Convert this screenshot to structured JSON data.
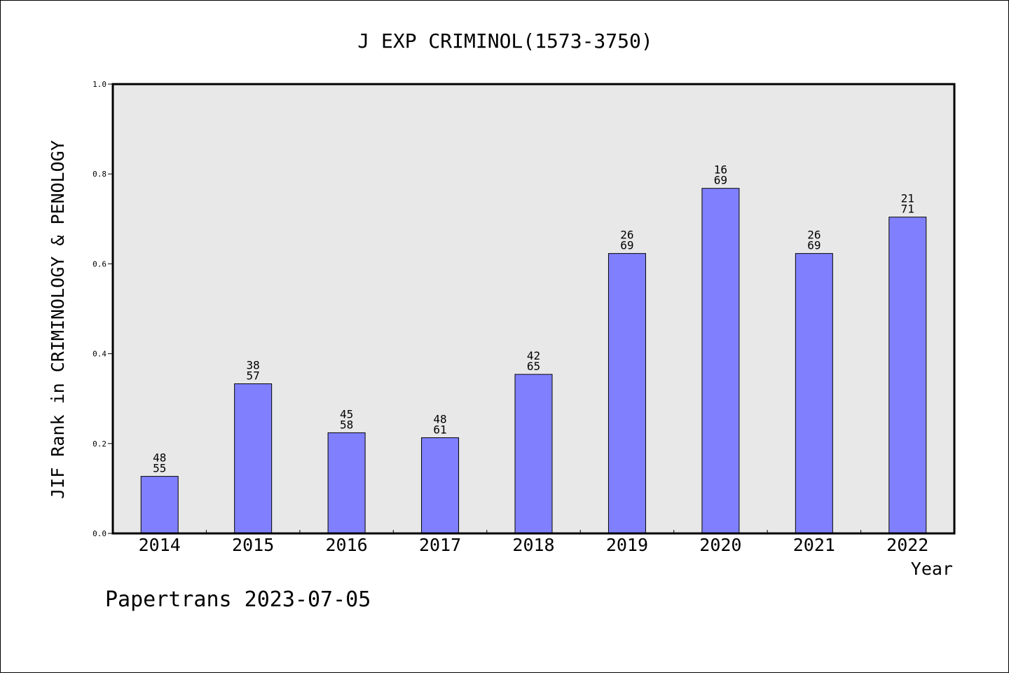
{
  "chart_data": {
    "type": "bar",
    "title": "J EXP CRIMINOL(1573-3750)",
    "xlabel": "Year",
    "ylabel": "JIF Rank in CRIMINOLOGY & PENOLOGY",
    "ylim": [
      0,
      1.0
    ],
    "yticks": [
      "0.0",
      "0.2",
      "0.4",
      "0.6",
      "0.8",
      "1.0"
    ],
    "grid": false,
    "categories": [
      "2014",
      "2015",
      "2016",
      "2017",
      "2018",
      "2019",
      "2020",
      "2021",
      "2022"
    ],
    "values": [
      0.127,
      0.333,
      0.224,
      0.213,
      0.354,
      0.623,
      0.768,
      0.623,
      0.704
    ],
    "labels": [
      [
        "48",
        "55"
      ],
      [
        "38",
        "57"
      ],
      [
        "45",
        "58"
      ],
      [
        "48",
        "61"
      ],
      [
        "42",
        "65"
      ],
      [
        "26",
        "69"
      ],
      [
        "16",
        "69"
      ],
      [
        "26",
        "69"
      ],
      [
        "21",
        "71"
      ]
    ],
    "colors": {
      "bar": "#8080ff",
      "plot_bg": "#e8e8e8",
      "axis": "#000000"
    }
  },
  "footer": {
    "text": "Papertrans 2023-07-05"
  }
}
